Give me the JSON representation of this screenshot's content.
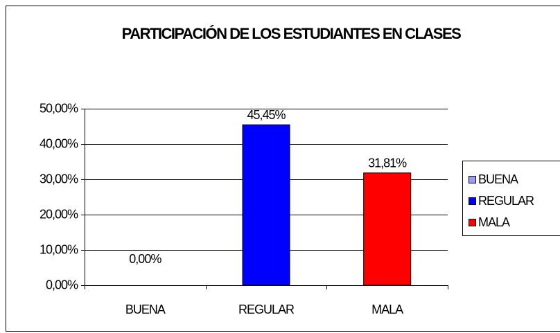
{
  "chart_data": {
    "type": "bar",
    "title": "PARTICIPACIÓN DE LOS ESTUDIANTES EN CLASES",
    "categories": [
      "BUENA",
      "REGULAR",
      "MALA"
    ],
    "values": [
      0,
      45.45,
      31.81
    ],
    "value_labels": [
      "0,00%",
      "45,45%",
      "31,81%"
    ],
    "colors": [
      "#9999ff",
      "#0000ff",
      "#ff0000"
    ],
    "ylim": [
      0,
      50
    ],
    "yticks": [
      {
        "value": 0,
        "label": "0,00%"
      },
      {
        "value": 10,
        "label": "10,00%"
      },
      {
        "value": 20,
        "label": "20,00%"
      },
      {
        "value": 30,
        "label": "30,00%"
      },
      {
        "value": 40,
        "label": "40,00%"
      },
      {
        "value": 50,
        "label": "50,00%"
      }
    ],
    "grid": true,
    "legend": "right"
  }
}
